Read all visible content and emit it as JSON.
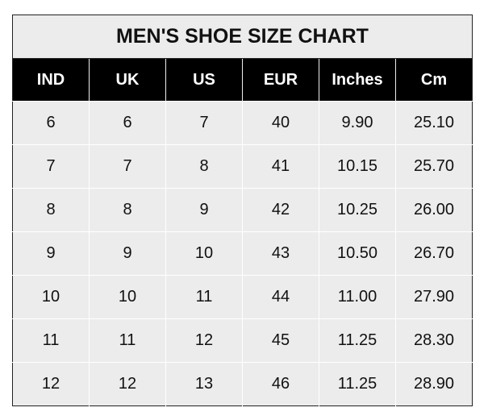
{
  "title": "MEN'S SHOE SIZE CHART",
  "columns": [
    "IND",
    "UK",
    "US",
    "EUR",
    "Inches",
    "Cm"
  ],
  "rows": [
    [
      "6",
      "6",
      "7",
      "40",
      "9.90",
      "25.10"
    ],
    [
      "7",
      "7",
      "8",
      "41",
      "10.15",
      "25.70"
    ],
    [
      "8",
      "8",
      "9",
      "42",
      "10.25",
      "26.00"
    ],
    [
      "9",
      "9",
      "10",
      "43",
      "10.50",
      "26.70"
    ],
    [
      "10",
      "10",
      "11",
      "44",
      "11.00",
      "27.90"
    ],
    [
      "11",
      "11",
      "12",
      "45",
      "11.25",
      "28.30"
    ],
    [
      "12",
      "12",
      "13",
      "46",
      "11.25",
      "28.90"
    ]
  ]
}
